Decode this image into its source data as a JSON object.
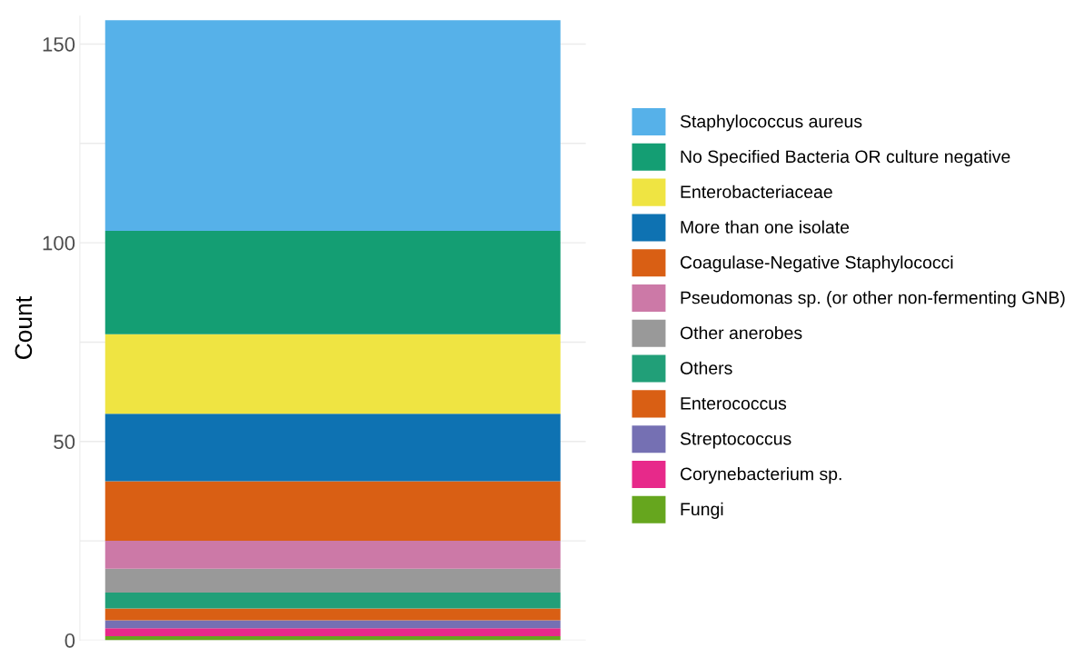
{
  "chart_data": {
    "type": "bar",
    "stacked": true,
    "ylabel": "Count",
    "categories": [
      null
    ],
    "series": [
      {
        "name": "Fungi",
        "color": "#66a61e",
        "values": [
          1
        ]
      },
      {
        "name": "Corynebacterium sp.",
        "color": "#e7298a",
        "values": [
          2
        ]
      },
      {
        "name": "Streptococcus",
        "color": "#7570b3",
        "values": [
          2
        ]
      },
      {
        "name": "Enterococcus",
        "color": "#d95f14",
        "values": [
          3
        ]
      },
      {
        "name": "Others",
        "color": "#219f78",
        "values": [
          4
        ]
      },
      {
        "name": "Other anerobes",
        "color": "#999999",
        "values": [
          6
        ]
      },
      {
        "name": "Pseudomonas sp. (or other non-fermenting GNB)",
        "color": "#cc79a7",
        "values": [
          7
        ]
      },
      {
        "name": "Coagulase-Negative Staphylococci",
        "color": "#d95f14",
        "values": [
          15
        ]
      },
      {
        "name": "More than one isolate",
        "color": "#0e72b2",
        "values": [
          17
        ]
      },
      {
        "name": "Enterobacteriaceae",
        "color": "#efe442",
        "values": [
          20
        ]
      },
      {
        "name": "No Specified Bacteria OR culture negative",
        "color": "#149e73",
        "values": [
          26
        ]
      },
      {
        "name": "Staphylococcus aureus",
        "color": "#56b1e9",
        "values": [
          53
        ]
      }
    ],
    "ylim": [
      0,
      157
    ],
    "yticks": [
      0,
      {
        "value": 25,
        "label": null
      },
      50,
      {
        "value": 75,
        "label": null
      },
      100,
      {
        "value": 125,
        "label": null
      },
      150
    ],
    "grid": "y",
    "legend": "right",
    "tick_labels": "y"
  }
}
